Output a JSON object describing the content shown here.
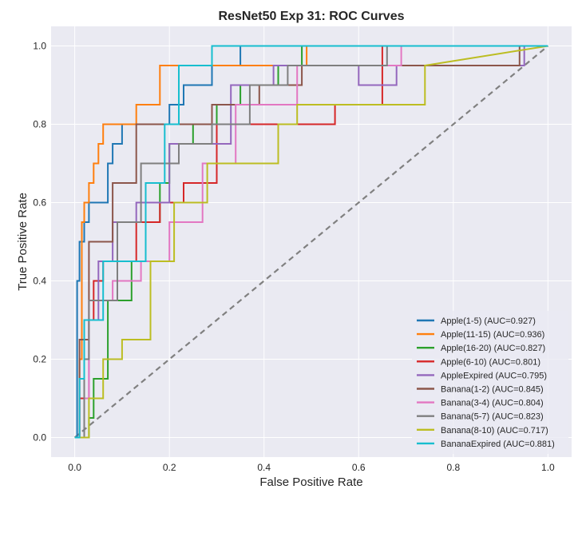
{
  "chart_data": {
    "type": "line",
    "title": "ResNet50 Exp 31: ROC Curves",
    "xlabel": "False Positive Rate",
    "ylabel": "True Positive Rate",
    "xlim": [
      -0.05,
      1.05
    ],
    "ylim": [
      -0.05,
      1.05
    ],
    "x_ticks": [
      "0.0",
      "0.2",
      "0.4",
      "0.6",
      "0.8",
      "1.0"
    ],
    "y_ticks": [
      "0.0",
      "0.2",
      "0.4",
      "0.6",
      "0.8",
      "1.0"
    ],
    "grid": true,
    "legend_position": "lower-right",
    "chance_line": {
      "x": [
        0,
        1
      ],
      "y": [
        0,
        1
      ],
      "style": "dashed",
      "color": "#808080"
    },
    "series": [
      {
        "name": "Apple(1-5) (AUC=0.927)",
        "color": "#1f77b4",
        "x": [
          0,
          0.005,
          0.005,
          0.01,
          0.01,
          0.02,
          0.02,
          0.03,
          0.03,
          0.07,
          0.07,
          0.08,
          0.08,
          0.1,
          0.1,
          0.13,
          0.13,
          0.2,
          0.2,
          0.23,
          0.23,
          0.29,
          0.29,
          0.35,
          0.35,
          1.0
        ],
        "y": [
          0,
          0,
          0.4,
          0.4,
          0.5,
          0.5,
          0.55,
          0.55,
          0.6,
          0.6,
          0.7,
          0.7,
          0.75,
          0.75,
          0.8,
          0.8,
          0.8,
          0.8,
          0.85,
          0.85,
          0.9,
          0.9,
          0.95,
          0.95,
          1.0,
          1.0
        ]
      },
      {
        "name": "Apple(11-15) (AUC=0.936)",
        "color": "#ff7f0e",
        "x": [
          0,
          0.01,
          0.01,
          0.015,
          0.015,
          0.02,
          0.02,
          0.03,
          0.03,
          0.04,
          0.04,
          0.05,
          0.05,
          0.06,
          0.06,
          0.13,
          0.13,
          0.18,
          0.18,
          0.49,
          0.49,
          1.0
        ],
        "y": [
          0,
          0,
          0.2,
          0.2,
          0.55,
          0.55,
          0.6,
          0.6,
          0.65,
          0.65,
          0.7,
          0.7,
          0.75,
          0.75,
          0.8,
          0.8,
          0.85,
          0.85,
          0.95,
          0.95,
          1.0,
          1.0
        ],
        "approx": true
      },
      {
        "name": "Apple(16-20) (AUC=0.827)",
        "color": "#2ca02c",
        "x": [
          0,
          0.03,
          0.03,
          0.04,
          0.04,
          0.07,
          0.07,
          0.12,
          0.12,
          0.15,
          0.15,
          0.18,
          0.18,
          0.2,
          0.2,
          0.25,
          0.25,
          0.3,
          0.3,
          0.35,
          0.35,
          0.43,
          0.43,
          0.48,
          0.48,
          1.0
        ],
        "y": [
          0,
          0,
          0.05,
          0.05,
          0.15,
          0.15,
          0.35,
          0.35,
          0.45,
          0.45,
          0.55,
          0.55,
          0.65,
          0.65,
          0.75,
          0.75,
          0.8,
          0.8,
          0.85,
          0.85,
          0.9,
          0.9,
          0.95,
          0.95,
          1.0,
          1.0
        ],
        "approx": true
      },
      {
        "name": "Apple(6-10) (AUC=0.801)",
        "color": "#d62728",
        "x": [
          0,
          0.01,
          0.01,
          0.02,
          0.02,
          0.04,
          0.04,
          0.06,
          0.06,
          0.13,
          0.13,
          0.18,
          0.18,
          0.23,
          0.23,
          0.3,
          0.3,
          0.55,
          0.55,
          0.65,
          0.65,
          1.0
        ],
        "y": [
          0,
          0,
          0.1,
          0.1,
          0.3,
          0.3,
          0.4,
          0.4,
          0.45,
          0.45,
          0.55,
          0.55,
          0.6,
          0.6,
          0.65,
          0.65,
          0.8,
          0.8,
          0.85,
          0.85,
          1.0,
          1.0
        ],
        "approx": true
      },
      {
        "name": "AppleExpired (AUC=0.795)",
        "color": "#9467bd",
        "x": [
          0,
          0.02,
          0.02,
          0.03,
          0.03,
          0.05,
          0.05,
          0.08,
          0.08,
          0.13,
          0.13,
          0.2,
          0.2,
          0.33,
          0.33,
          0.42,
          0.42,
          0.6,
          0.6,
          0.68,
          0.68,
          0.95,
          0.95,
          1.0
        ],
        "y": [
          0,
          0,
          0.1,
          0.1,
          0.3,
          0.3,
          0.45,
          0.45,
          0.55,
          0.55,
          0.6,
          0.6,
          0.75,
          0.75,
          0.9,
          0.9,
          0.95,
          0.95,
          0.9,
          0.9,
          0.95,
          0.95,
          1.0,
          1.0
        ],
        "approx": true
      },
      {
        "name": "Banana(1-2) (AUC=0.845)",
        "color": "#8c564b",
        "x": [
          0,
          0.01,
          0.01,
          0.03,
          0.03,
          0.08,
          0.08,
          0.13,
          0.13,
          0.29,
          0.29,
          0.39,
          0.39,
          0.48,
          0.48,
          0.65,
          0.65,
          0.94,
          0.94,
          1.0
        ],
        "y": [
          0,
          0,
          0.25,
          0.25,
          0.5,
          0.5,
          0.65,
          0.65,
          0.8,
          0.8,
          0.85,
          0.85,
          0.9,
          0.9,
          0.95,
          0.95,
          0.95,
          0.95,
          1.0,
          1.0
        ],
        "approx": true
      },
      {
        "name": "Banana(3-4) (AUC=0.804)",
        "color": "#e377c2",
        "x": [
          0,
          0.02,
          0.02,
          0.03,
          0.03,
          0.08,
          0.08,
          0.14,
          0.14,
          0.2,
          0.2,
          0.27,
          0.27,
          0.34,
          0.34,
          0.47,
          0.47,
          0.69,
          0.69,
          1.0
        ],
        "y": [
          0,
          0,
          0.1,
          0.1,
          0.35,
          0.35,
          0.4,
          0.4,
          0.45,
          0.45,
          0.55,
          0.55,
          0.7,
          0.7,
          0.85,
          0.85,
          0.95,
          0.95,
          1.0,
          1.0
        ],
        "approx": true
      },
      {
        "name": "Banana(5-7) (AUC=0.823)",
        "color": "#7f7f7f",
        "x": [
          0,
          0.02,
          0.02,
          0.03,
          0.03,
          0.09,
          0.09,
          0.14,
          0.14,
          0.22,
          0.22,
          0.29,
          0.29,
          0.37,
          0.37,
          0.45,
          0.45,
          0.66,
          0.66,
          1.0
        ],
        "y": [
          0,
          0,
          0.2,
          0.2,
          0.35,
          0.35,
          0.55,
          0.55,
          0.7,
          0.7,
          0.75,
          0.75,
          0.8,
          0.8,
          0.9,
          0.9,
          0.95,
          0.95,
          1.0,
          1.0
        ],
        "approx": true
      },
      {
        "name": "Banana(8-10) (AUC=0.717)",
        "color": "#bcbd22",
        "x": [
          0,
          0.03,
          0.03,
          0.06,
          0.06,
          0.1,
          0.1,
          0.16,
          0.16,
          0.21,
          0.21,
          0.28,
          0.28,
          0.43,
          0.43,
          0.47,
          0.47,
          0.74,
          0.74,
          1.0
        ],
        "y": [
          0,
          0,
          0.1,
          0.1,
          0.2,
          0.2,
          0.25,
          0.25,
          0.45,
          0.45,
          0.6,
          0.6,
          0.7,
          0.7,
          0.8,
          0.8,
          0.85,
          0.85,
          0.95,
          1.0
        ],
        "approx": true
      },
      {
        "name": "BananaExpired (AUC=0.881)",
        "color": "#17becf",
        "x": [
          0,
          0.01,
          0.01,
          0.02,
          0.02,
          0.06,
          0.06,
          0.15,
          0.15,
          0.19,
          0.19,
          0.22,
          0.22,
          0.29,
          0.29,
          1.0
        ],
        "y": [
          0,
          0,
          0.15,
          0.15,
          0.3,
          0.3,
          0.45,
          0.45,
          0.65,
          0.65,
          0.8,
          0.8,
          0.95,
          0.95,
          1.0,
          1.0
        ],
        "approx": true
      }
    ]
  }
}
